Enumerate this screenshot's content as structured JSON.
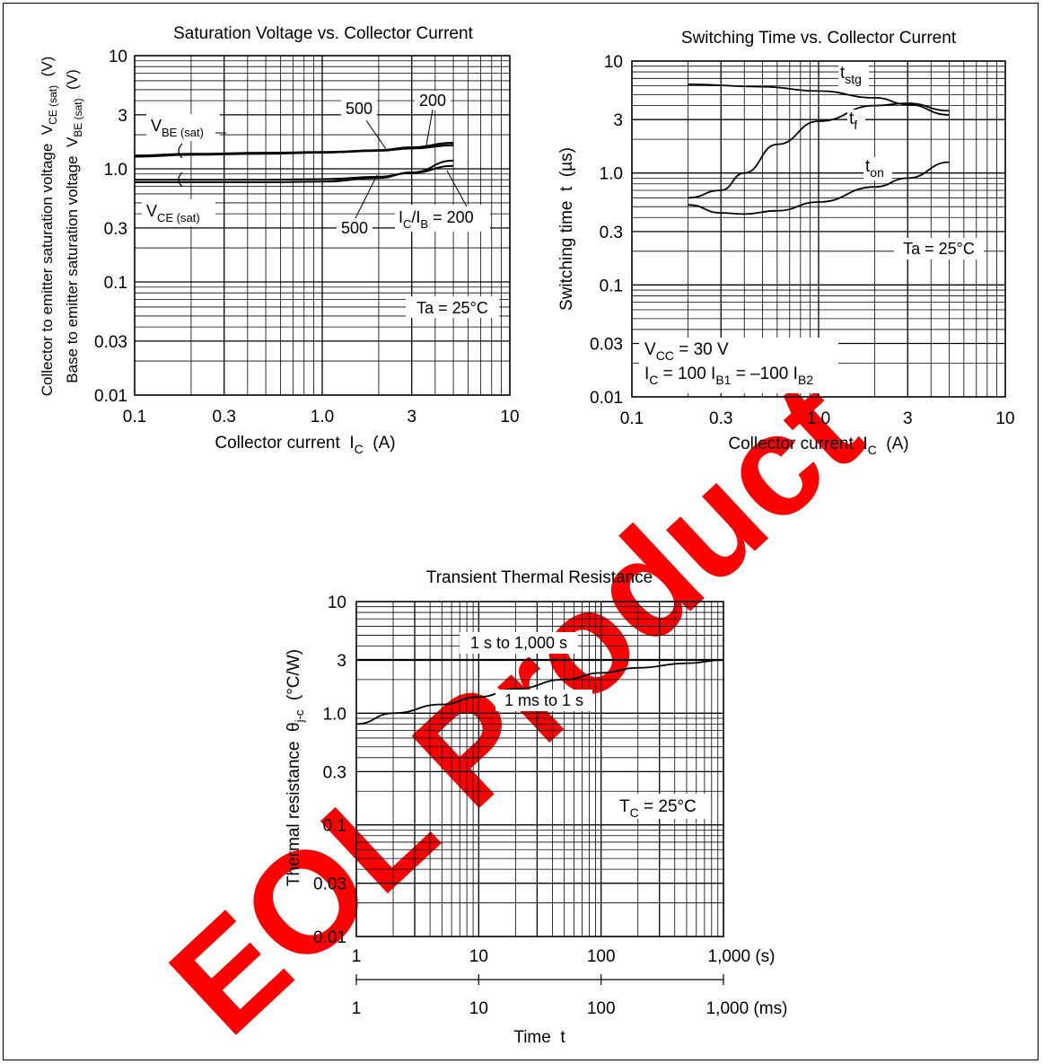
{
  "watermark": {
    "text": "EOL Product",
    "color": "#ff0000"
  },
  "chart_data": [
    {
      "id": "sat",
      "type": "line",
      "title": "Saturation Voltage vs. Collector Current",
      "xlabel": "Collector current IC (A)",
      "ylabel": "Collector to emitter saturation voltage VCE (sat) (V) / Base to emitter saturation voltage VBE (sat) (V)",
      "xscale": "log",
      "yscale": "log",
      "xlim": [
        0.1,
        10
      ],
      "ylim": [
        0.01,
        10
      ],
      "xticks": [
        "0.1",
        "0.3",
        "1.0",
        "3",
        "10"
      ],
      "yticks": [
        "0.01",
        "0.03",
        "0.1",
        "0.3",
        "1.0",
        "3",
        "10"
      ],
      "annotations": [
        "VBE (sat)",
        "VCE (sat)",
        "500",
        "200",
        "500",
        "IC/IB = 200",
        "Ta = 25°C"
      ],
      "series": [
        {
          "name": "VBE(sat) IC/IB=500",
          "x": [
            0.1,
            0.2,
            0.5,
            1.0,
            2.0,
            3.0,
            5.0
          ],
          "y": [
            1.3,
            1.35,
            1.38,
            1.4,
            1.45,
            1.52,
            1.62
          ]
        },
        {
          "name": "VBE(sat) IC/IB=200",
          "x": [
            0.1,
            0.2,
            0.5,
            1.0,
            2.0,
            3.0,
            5.0
          ],
          "y": [
            1.28,
            1.33,
            1.36,
            1.39,
            1.46,
            1.55,
            1.7
          ]
        },
        {
          "name": "VCE(sat) IC/IB=500",
          "x": [
            0.1,
            0.2,
            0.5,
            1.0,
            2.0,
            3.0,
            5.0
          ],
          "y": [
            0.8,
            0.8,
            0.8,
            0.81,
            0.85,
            0.92,
            1.06
          ]
        },
        {
          "name": "VCE(sat) IC/IB=200",
          "x": [
            0.1,
            0.2,
            0.5,
            1.0,
            2.0,
            3.0,
            5.0
          ],
          "y": [
            0.76,
            0.76,
            0.76,
            0.77,
            0.83,
            0.93,
            1.18
          ]
        }
      ]
    },
    {
      "id": "sw",
      "type": "line",
      "title": "Switching Time vs. Collector Current",
      "xlabel": "Collector current IC (A)",
      "ylabel": "Switching time t (µs)",
      "xscale": "log",
      "yscale": "log",
      "xlim": [
        0.1,
        10
      ],
      "ylim": [
        0.01,
        10
      ],
      "xticks": [
        "0.1",
        "0.3",
        "1.0",
        "3",
        "10"
      ],
      "yticks": [
        "0.01",
        "0.03",
        "0.1",
        "0.3",
        "1.0",
        "3",
        "10"
      ],
      "annotations": [
        "tstg",
        "tf",
        "ton",
        "Ta = 25°C",
        "VCC = 30 V",
        "IC = 100 IB1 = –100 IB2"
      ],
      "series": [
        {
          "name": "tstg",
          "x": [
            0.2,
            0.5,
            1.0,
            2.0,
            3.0,
            5.0
          ],
          "y": [
            6.2,
            5.9,
            5.4,
            4.7,
            4.1,
            3.3
          ]
        },
        {
          "name": "tf",
          "x": [
            0.2,
            0.3,
            0.4,
            0.6,
            1.0,
            2.0,
            3.0,
            5.0
          ],
          "y": [
            0.6,
            0.7,
            1.0,
            1.8,
            2.9,
            4.0,
            4.2,
            3.6
          ]
        },
        {
          "name": "ton",
          "x": [
            0.2,
            0.3,
            0.4,
            0.6,
            1.0,
            2.0,
            3.0,
            5.0
          ],
          "y": [
            0.52,
            0.44,
            0.43,
            0.46,
            0.55,
            0.75,
            0.9,
            1.25
          ]
        }
      ]
    },
    {
      "id": "therm",
      "type": "line",
      "title": "Transient Thermal Resistance",
      "xlabel": "Time t",
      "ylabel": "Thermal resistance θj-c (°C/W)",
      "xscale": "log",
      "yscale": "log",
      "xlim": [
        1,
        1000
      ],
      "ylim": [
        0.01,
        10
      ],
      "xticks": [
        "1",
        "10",
        "100",
        "1,000 (s)"
      ],
      "xticks2": [
        "1",
        "10",
        "100",
        "1,000 (ms)"
      ],
      "yticks": [
        "0.01",
        "0.03",
        "0.1",
        "0.3",
        "1.0",
        "3",
        "10"
      ],
      "annotations": [
        "1 s to 1,000 s",
        "1 ms to 1 s",
        "TC = 25°C"
      ],
      "series": [
        {
          "name": "1 s to 1,000 s",
          "x": [
            1,
            10,
            100,
            1000
          ],
          "y": [
            3.0,
            3.0,
            3.0,
            3.0
          ]
        },
        {
          "name": "1 ms to 1 s",
          "x": [
            1,
            2,
            5,
            10,
            20,
            50,
            100,
            200,
            500,
            1000
          ],
          "y": [
            0.8,
            1.0,
            1.2,
            1.4,
            1.65,
            2.0,
            2.3,
            2.55,
            2.8,
            3.0
          ]
        }
      ]
    }
  ]
}
